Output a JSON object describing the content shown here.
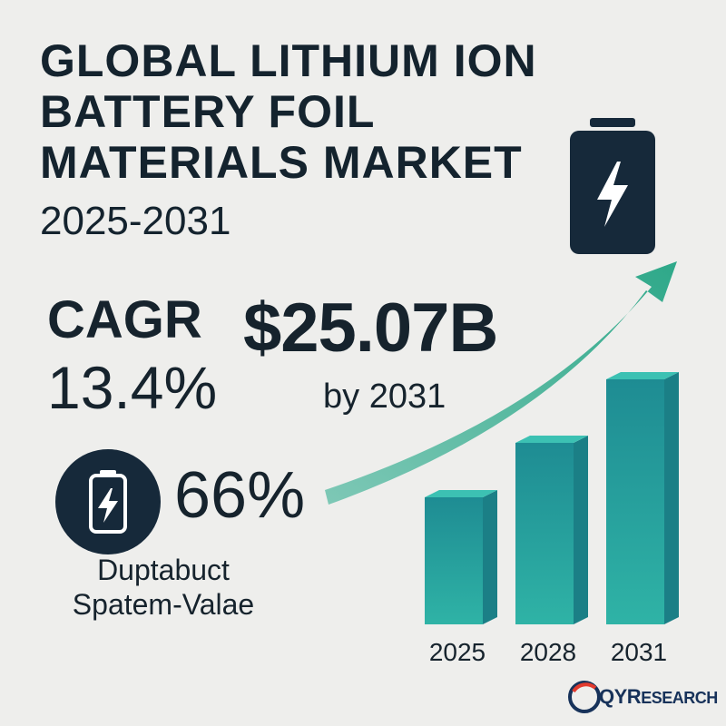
{
  "title": {
    "line1": "GLOBAL LITHIUM ION",
    "line2": "BATTERY FOIL",
    "line3": "MATERIALS MARKET",
    "line4": "2025-2031"
  },
  "cagr": {
    "label": "CAGR",
    "value": "13.4%"
  },
  "market": {
    "value": "$25.07B",
    "year_label": "by 2031"
  },
  "share": {
    "value": "66%",
    "label_line1": "Duptabuct",
    "label_line2": "Spatem-Valae"
  },
  "logo": {
    "brand_prefix": "QYR",
    "brand_suffix": "ESEARCH"
  },
  "icons": {
    "title_icon": "battery-charging-icon",
    "share_icon": "battery-charging-icon",
    "trend": "arrow-up-right-icon"
  },
  "colors": {
    "text": "#14232e",
    "icon_dark": "#16293a",
    "bar_light": "#2bb0a8",
    "bar_dark": "#1b7f86",
    "arrow": "#3bb392"
  },
  "chart_data": {
    "type": "bar",
    "categories": [
      "2025",
      "2028",
      "2031"
    ],
    "values": [
      14,
      20,
      27
    ],
    "ylim": [
      0,
      30
    ],
    "grid": false,
    "legend": "none",
    "trend_arrow": true
  }
}
